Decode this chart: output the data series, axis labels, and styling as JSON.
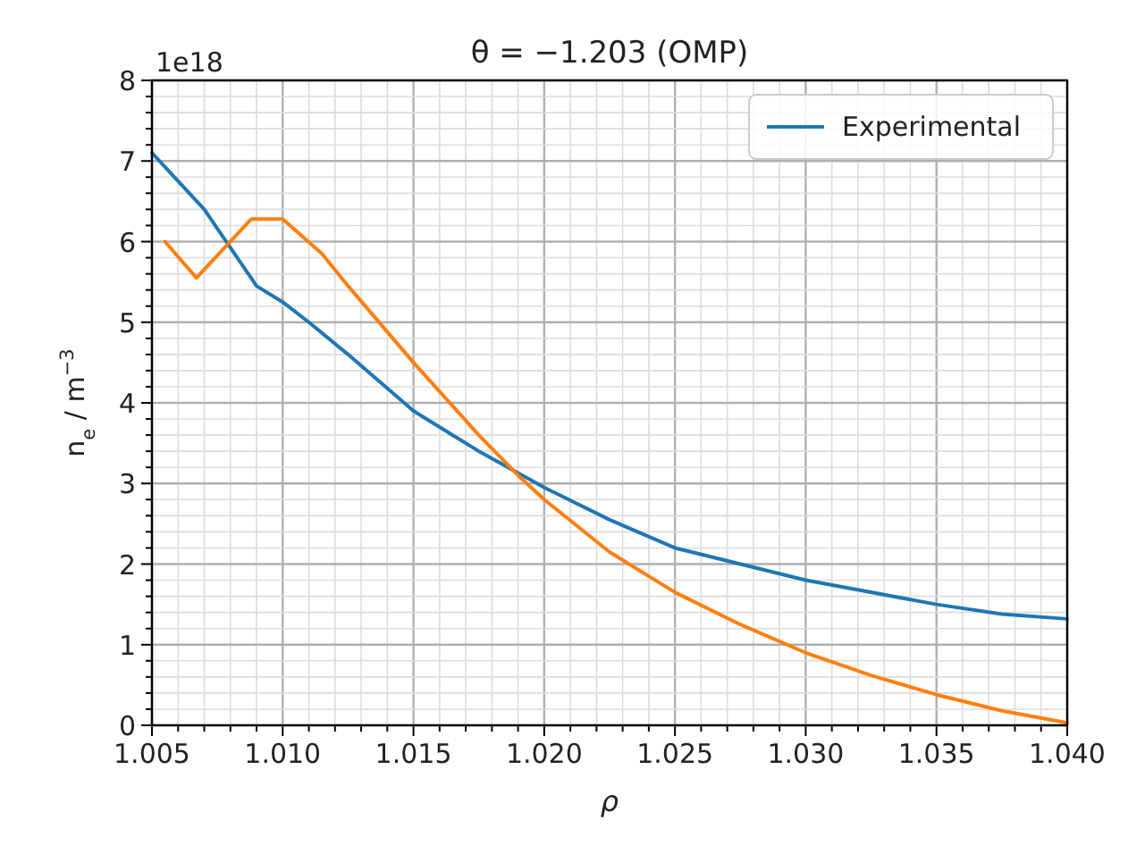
{
  "chart_data": {
    "type": "line",
    "title": "θ = −1.203 (OMP)",
    "xlabel": "ρ",
    "ylabel": "n$_{e}$ / m$^{−3}$",
    "annotations": [
      "1e18"
    ],
    "xlim": [
      1.005,
      1.04
    ],
    "ylim": [
      0,
      8
    ],
    "xticks": [
      {
        "value": 1.005,
        "label": "1.005"
      },
      {
        "value": 1.006,
        "label": null
      },
      {
        "value": 1.007,
        "label": null
      },
      {
        "value": 1.008,
        "label": null
      },
      {
        "value": 1.009,
        "label": null
      },
      {
        "value": 1.01,
        "label": "1.010"
      },
      {
        "value": 1.011,
        "label": null
      },
      {
        "value": 1.012,
        "label": null
      },
      {
        "value": 1.013,
        "label": null
      },
      {
        "value": 1.014,
        "label": null
      },
      {
        "value": 1.015,
        "label": "1.015"
      },
      {
        "value": 1.016,
        "label": null
      },
      {
        "value": 1.017,
        "label": null
      },
      {
        "value": 1.018,
        "label": null
      },
      {
        "value": 1.019,
        "label": null
      },
      {
        "value": 1.02,
        "label": "1.020"
      },
      {
        "value": 1.021,
        "label": null
      },
      {
        "value": 1.022,
        "label": null
      },
      {
        "value": 1.023,
        "label": null
      },
      {
        "value": 1.024,
        "label": null
      },
      {
        "value": 1.025,
        "label": "1.025"
      },
      {
        "value": 1.026,
        "label": null
      },
      {
        "value": 1.027,
        "label": null
      },
      {
        "value": 1.028,
        "label": null
      },
      {
        "value": 1.029,
        "label": null
      },
      {
        "value": 1.03,
        "label": "1.030"
      },
      {
        "value": 1.031,
        "label": null
      },
      {
        "value": 1.032,
        "label": null
      },
      {
        "value": 1.033,
        "label": null
      },
      {
        "value": 1.034,
        "label": null
      },
      {
        "value": 1.035,
        "label": "1.035"
      },
      {
        "value": 1.036,
        "label": null
      },
      {
        "value": 1.037,
        "label": null
      },
      {
        "value": 1.038,
        "label": null
      },
      {
        "value": 1.039,
        "label": null
      },
      {
        "value": 1.04,
        "label": "1.040"
      }
    ],
    "yticks": [
      0,
      {
        "value": 0.2,
        "label": null
      },
      {
        "value": 0.4,
        "label": null
      },
      {
        "value": 0.6,
        "label": null
      },
      {
        "value": 0.8,
        "label": null
      },
      1,
      {
        "value": 1.2,
        "label": null
      },
      {
        "value": 1.4,
        "label": null
      },
      {
        "value": 1.6,
        "label": null
      },
      {
        "value": 1.8,
        "label": null
      },
      2,
      {
        "value": 2.2,
        "label": null
      },
      {
        "value": 2.4,
        "label": null
      },
      {
        "value": 2.6,
        "label": null
      },
      {
        "value": 2.8,
        "label": null
      },
      3,
      {
        "value": 3.2,
        "label": null
      },
      {
        "value": 3.4,
        "label": null
      },
      {
        "value": 3.6,
        "label": null
      },
      {
        "value": 3.8,
        "label": null
      },
      4,
      {
        "value": 4.2,
        "label": null
      },
      {
        "value": 4.4,
        "label": null
      },
      {
        "value": 4.6,
        "label": null
      },
      {
        "value": 4.8,
        "label": null
      },
      5,
      {
        "value": 5.2,
        "label": null
      },
      {
        "value": 5.4,
        "label": null
      },
      {
        "value": 5.6,
        "label": null
      },
      {
        "value": 5.8,
        "label": null
      },
      6,
      {
        "value": 6.2,
        "label": null
      },
      {
        "value": 6.4,
        "label": null
      },
      {
        "value": 6.6,
        "label": null
      },
      {
        "value": 6.8,
        "label": null
      },
      7,
      {
        "value": 7.2,
        "label": null
      },
      {
        "value": 7.4,
        "label": null
      },
      {
        "value": 7.6,
        "label": null
      },
      {
        "value": 7.8,
        "label": null
      },
      8
    ],
    "grid": true,
    "legend": "top right",
    "line_style": "solid",
    "series": [
      {
        "name": "Experimental",
        "color": "#1f77b4",
        "x": [
          1.005,
          1.007,
          1.009,
          1.01,
          1.011,
          1.0125,
          1.015,
          1.0175,
          1.02,
          1.0225,
          1.025,
          1.03,
          1.035,
          1.0375,
          1.04
        ],
        "values": [
          7.1,
          6.4,
          5.45,
          5.25,
          5.0,
          4.6,
          3.9,
          3.4,
          2.95,
          2.55,
          2.2,
          1.8,
          1.5,
          1.38,
          1.32
        ]
      },
      {
        "color": "#ff7f0e",
        "x": [
          1.0055,
          1.0067,
          1.0088,
          1.01,
          1.0115,
          1.0125,
          1.015,
          1.0175,
          1.019,
          1.02,
          1.0225,
          1.025,
          1.0275,
          1.03,
          1.0325,
          1.035,
          1.0375,
          1.04
        ],
        "values": [
          6.0,
          5.55,
          6.28,
          6.28,
          5.85,
          5.45,
          4.5,
          3.6,
          3.1,
          2.8,
          2.15,
          1.65,
          1.25,
          0.9,
          0.62,
          0.38,
          0.18,
          0.03
        ]
      }
    ]
  }
}
